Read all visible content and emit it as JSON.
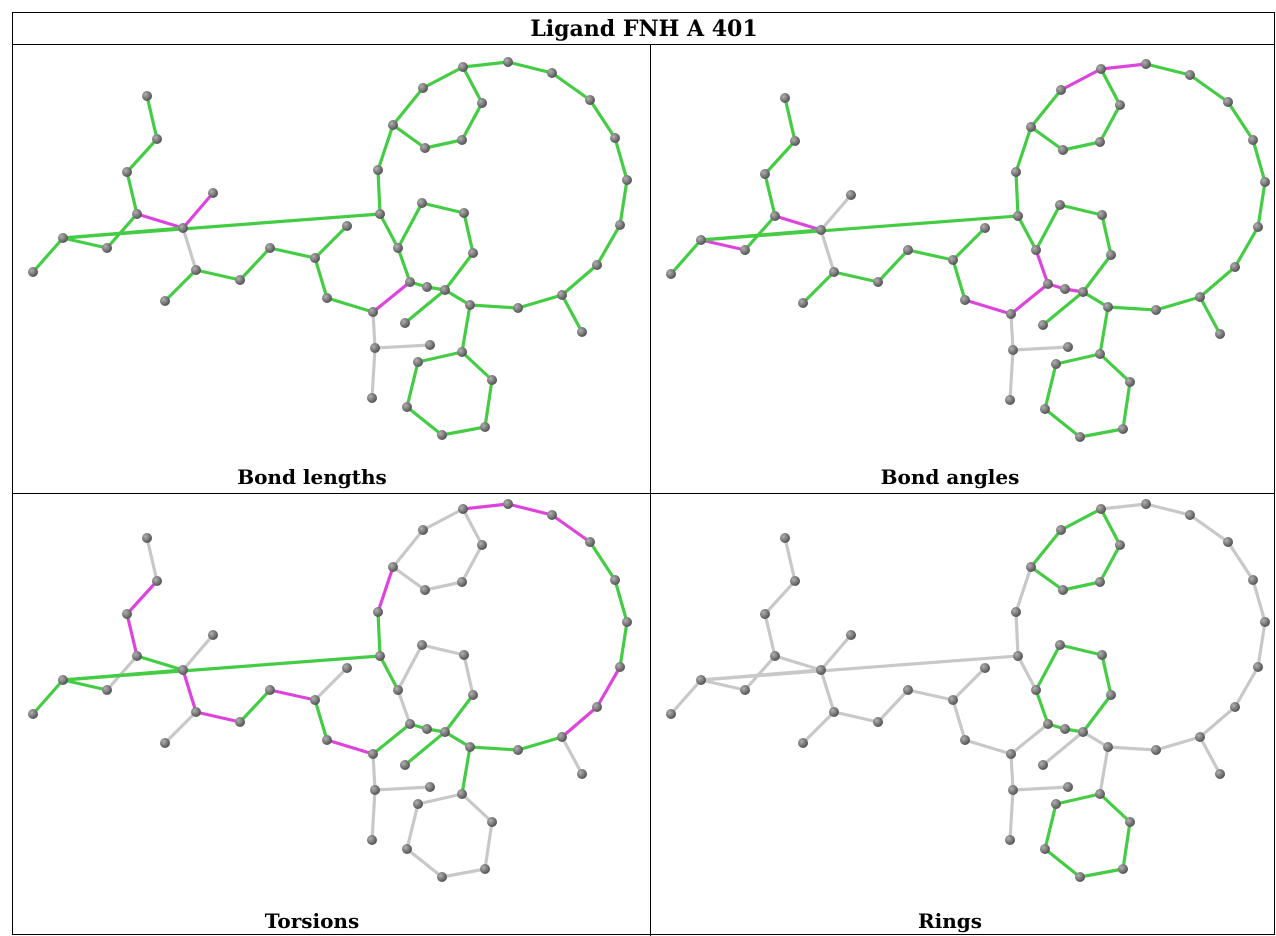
{
  "title": "Ligand FNH A 401",
  "panels": [
    {
      "caption": "Bond lengths"
    },
    {
      "caption": "Bond angles"
    },
    {
      "caption": "Torsions"
    },
    {
      "caption": "Rings"
    }
  ]
}
